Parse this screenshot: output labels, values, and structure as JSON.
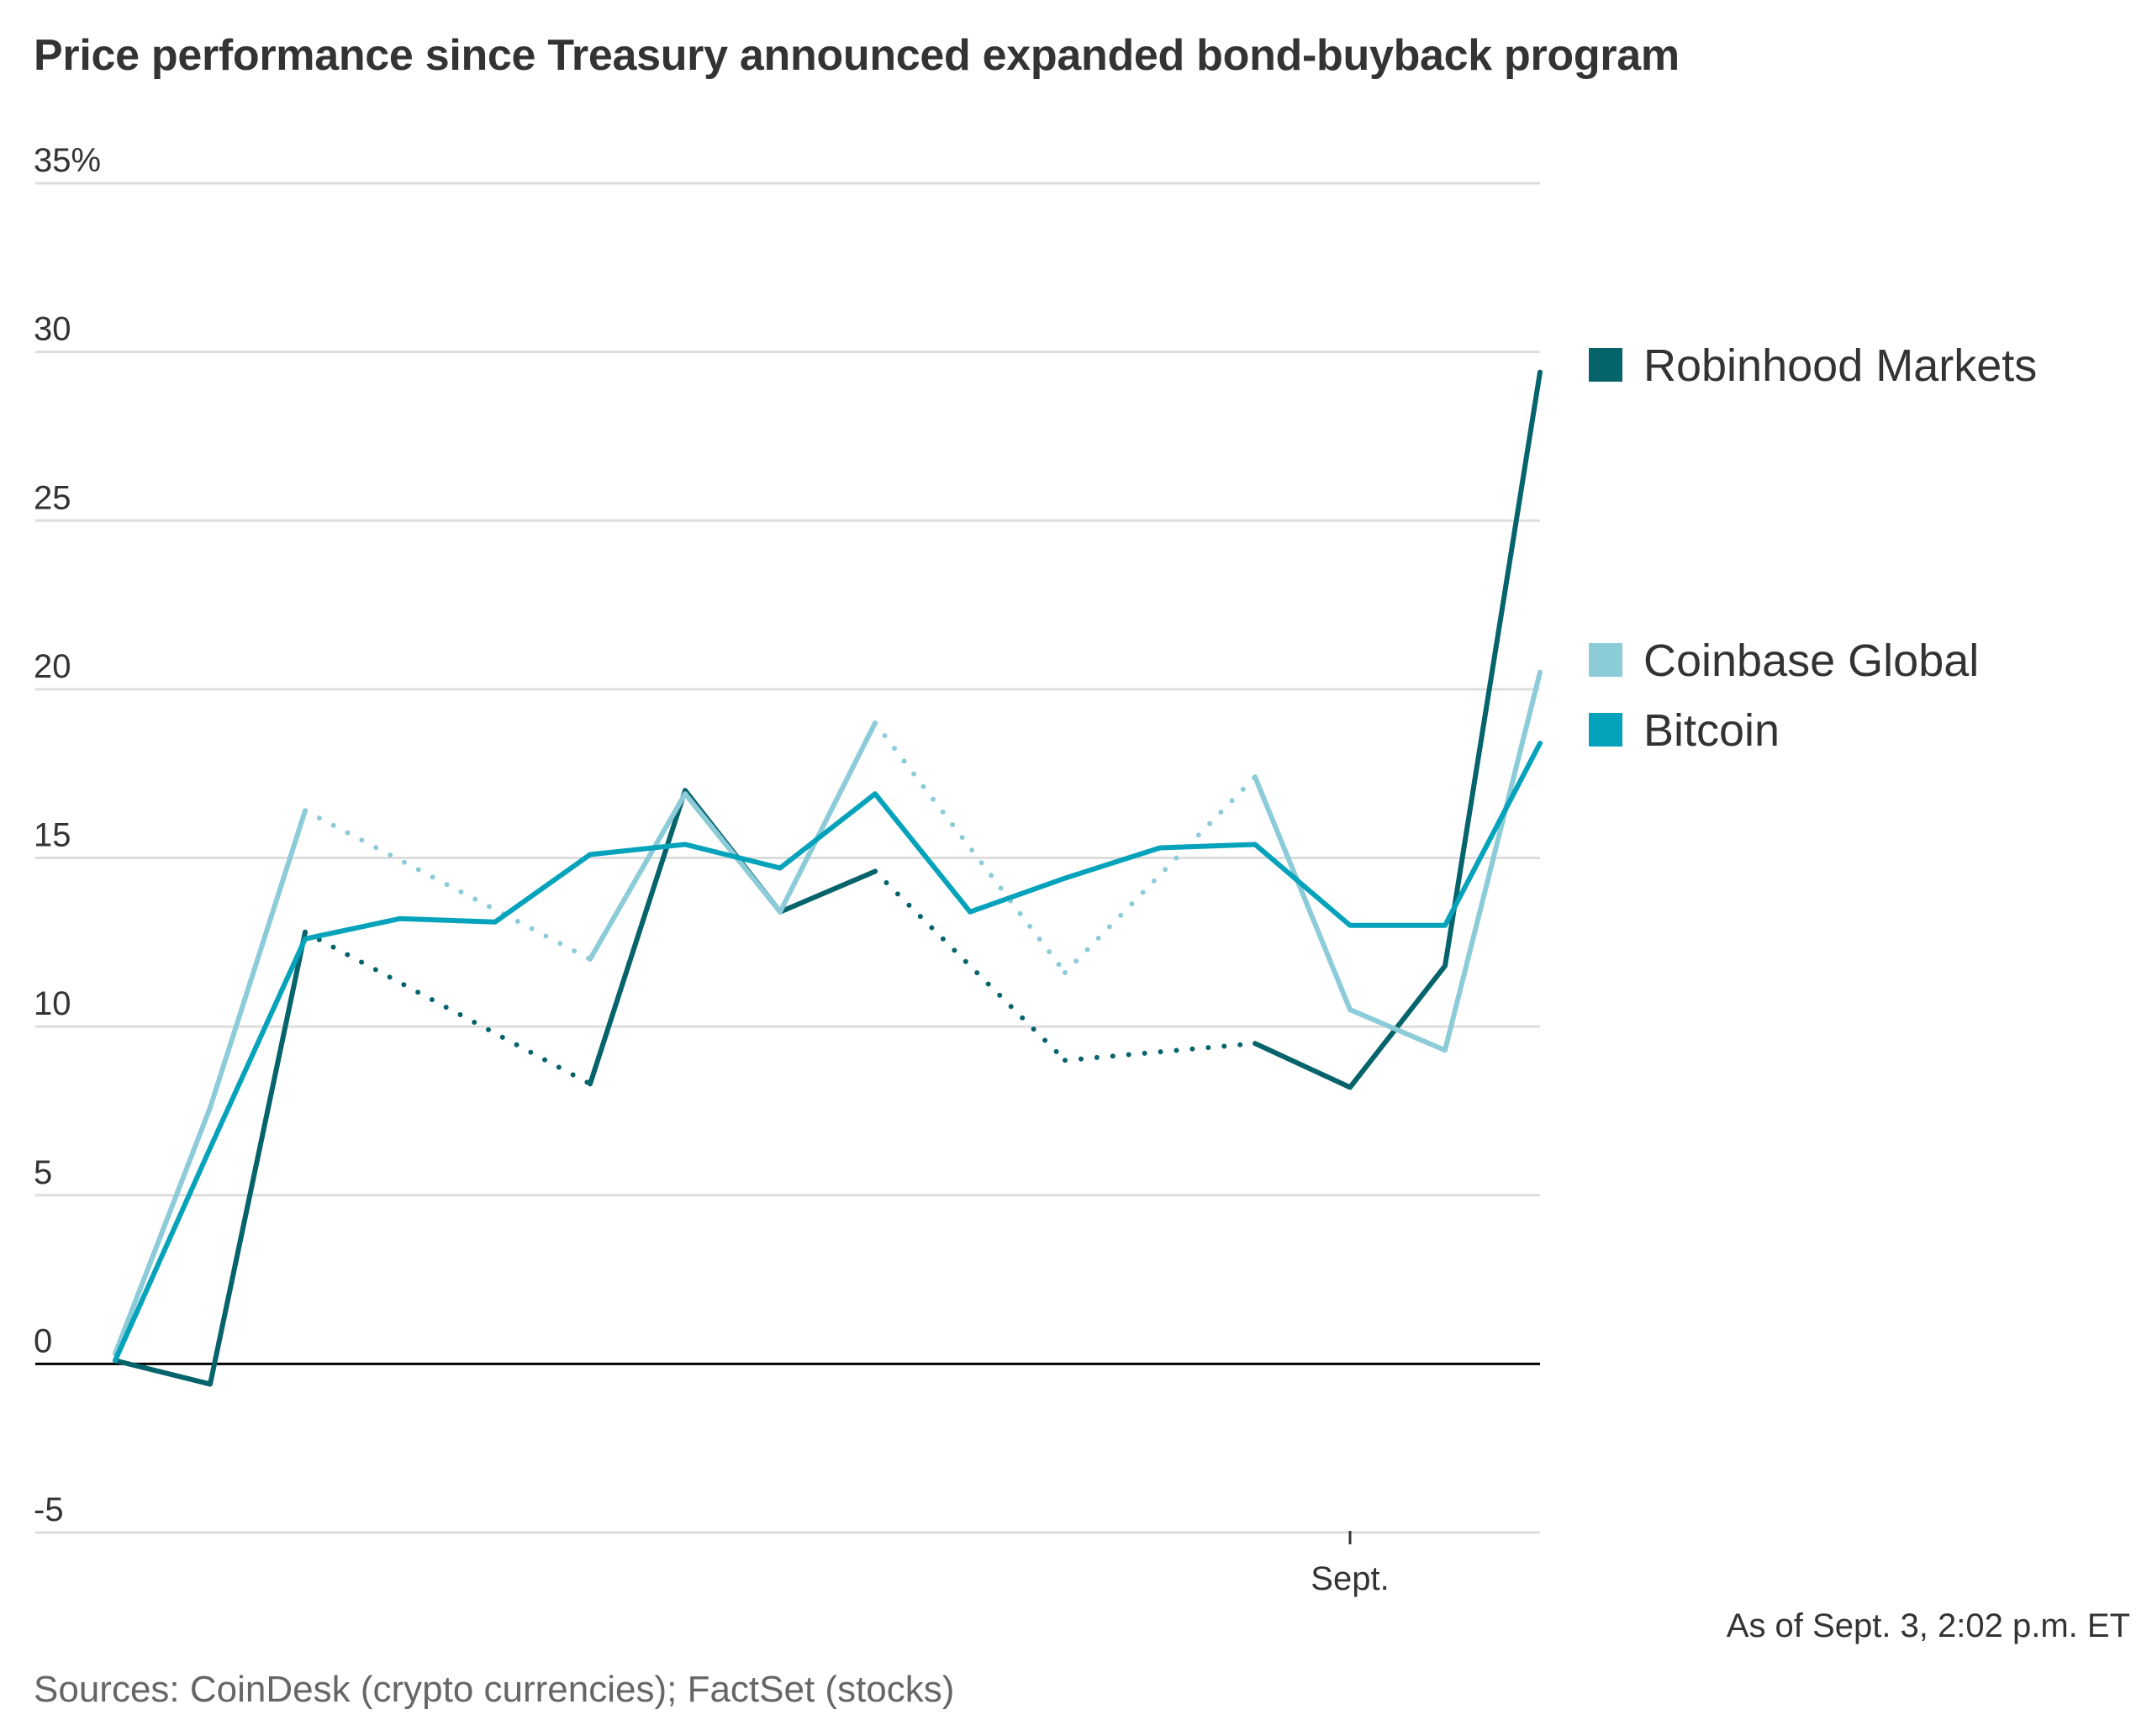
{
  "title": "Price performance since Treasury announced expanded bond-buyback program",
  "as_of": "As of Sept. 3, 2:02 p.m. ET",
  "source": "Sources: CoinDesk (crypto currencies); FactSet (stocks)",
  "chart_data": {
    "type": "line",
    "title": "Price performance since Treasury announced expanded bond-buyback program",
    "xlabel": "",
    "ylabel": "",
    "ylim": [
      -5,
      35
    ],
    "y_ticks": [
      35,
      30,
      25,
      20,
      15,
      10,
      5,
      0,
      -5
    ],
    "y_tick_labels": [
      "35%",
      "30",
      "25",
      "20",
      "15",
      "10",
      "5",
      "0",
      "-5"
    ],
    "y_unit": "%",
    "x_count": 16,
    "x_ticks": [
      {
        "index": 13,
        "label": "Sept."
      }
    ],
    "grid": true,
    "legend_position": "right",
    "series": [
      {
        "name": "Robinhood Markets",
        "color": "#05636b",
        "values": [
          0.1,
          -0.6,
          12.8,
          null,
          null,
          8.3,
          17.0,
          13.4,
          14.6,
          null,
          9.0,
          null,
          9.5,
          8.2,
          11.8,
          29.4
        ],
        "gaps": [
          [
            2,
            5
          ],
          [
            8,
            10
          ],
          [
            10,
            12
          ]
        ]
      },
      {
        "name": "Coinbase Global",
        "color": "#8ccbd8",
        "values": [
          0.3,
          7.6,
          16.4,
          null,
          null,
          12.0,
          16.9,
          13.4,
          19.0,
          null,
          11.6,
          null,
          17.4,
          10.5,
          9.3,
          20.5
        ],
        "gaps": [
          [
            2,
            5
          ],
          [
            8,
            10
          ],
          [
            10,
            12
          ]
        ]
      },
      {
        "name": "Bitcoin",
        "color": "#05a3bb",
        "values": [
          0.1,
          6.4,
          12.6,
          13.2,
          13.1,
          15.1,
          15.4,
          14.7,
          16.9,
          13.4,
          14.4,
          15.3,
          15.4,
          13.0,
          13.0,
          18.4
        ],
        "gaps": []
      }
    ],
    "legend": [
      {
        "name": "Robinhood Markets",
        "color": "#05636b",
        "value_at": 29.5
      },
      {
        "name": "Coinbase Global",
        "color": "#8ccbd8",
        "value_at": 20.5
      },
      {
        "name": "Bitcoin",
        "color": "#05a3bb",
        "value_at": 18.4
      }
    ]
  }
}
